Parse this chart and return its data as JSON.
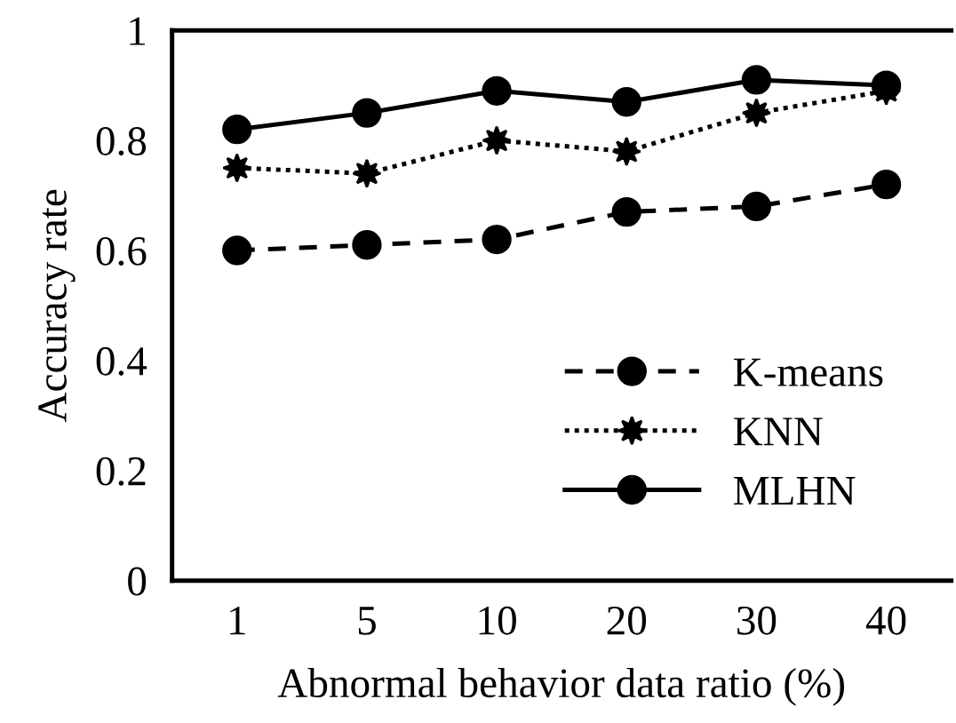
{
  "chart_data": {
    "type": "line",
    "xlabel": "Abnormal behavior data ratio (%)",
    "ylabel": "Accuracy rate",
    "categories": [
      "1",
      "5",
      "10",
      "20",
      "30",
      "40"
    ],
    "series": [
      {
        "name": "K-means",
        "color": "#000000",
        "values": [
          0.6,
          0.61,
          0.62,
          0.67,
          0.68,
          0.72
        ],
        "line_style": "dashed",
        "marker": "circle"
      },
      {
        "name": "KNN",
        "color": "#000000",
        "values": [
          0.75,
          0.74,
          0.8,
          0.78,
          0.85,
          0.89
        ],
        "line_style": "dotted",
        "marker": "star"
      },
      {
        "name": "MLHN",
        "color": "#000000",
        "values": [
          0.82,
          0.85,
          0.89,
          0.87,
          0.91,
          0.9
        ],
        "line_style": "solid",
        "marker": "circle"
      }
    ],
    "ylim": [
      0,
      1
    ],
    "yticks": [
      0,
      0.2,
      0.4,
      0.6,
      0.8,
      1
    ],
    "grid": false,
    "legend": "bottom right"
  }
}
